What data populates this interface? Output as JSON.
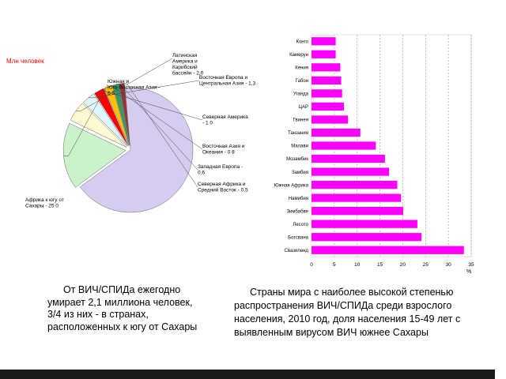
{
  "pie_units": "Млн человек",
  "captions": {
    "left": "От ВИЧ/СПИДа ежегодно умирает 2,1 миллиона человек, 3/4 из них - в странах, расположенных к югу от Сахары",
    "right": "Страны мира с наиболее высокой степенью распространения ВИЧ/СПИДа среди взрослого населения, 2010 год, доля населения 15-49 лет с выявленным вирусом ВИЧ южнее Сахары"
  },
  "colors": {
    "bars": "#ff00ff",
    "pie_slices": [
      "#d6ccf0",
      "#ccf2cc",
      "#fff8d0",
      "#dff6fb",
      "#ff0000",
      "#ffc000",
      "#339966",
      "#993333"
    ]
  },
  "chart_data": [
    {
      "type": "pie",
      "title": "",
      "units_label": "Млн человек",
      "slices": [
        {
          "label": "Африка к югу от Сахары - 25 0",
          "value": 25.0
        },
        {
          "label": "Южная и Юго-Восточная Азия - 6 5",
          "value": 6.5
        },
        {
          "label": "Латинская Америка и Карибский бассейн - 2,0",
          "value": 2.0
        },
        {
          "label": "Восточная Европа и Центральная Азия - 1,3",
          "value": 1.3
        },
        {
          "label": "Северная Америка - 1 0",
          "value": 1.0
        },
        {
          "label": "Восточная Азия и Океания - 0 8",
          "value": 0.8
        },
        {
          "label": "Западная Европа - 0,6",
          "value": 0.6
        },
        {
          "label": "Северная Африка и Средний Восток - 0,5",
          "value": 0.5
        }
      ]
    },
    {
      "type": "bar",
      "orientation": "horizontal",
      "categories": [
        "Конго",
        "Камерун",
        "Кения",
        "Габон",
        "Уганда",
        "ЦАР",
        "Гвинея",
        "Танзания",
        "Малави",
        "Мозамбик",
        "Замбия",
        "Южная Африка",
        "Намибия",
        "Зимбабве",
        "Лесото",
        "Ботсвана",
        "Свазиленд"
      ],
      "values": [
        5.3,
        5.3,
        6.3,
        6.5,
        6.7,
        7.1,
        8.0,
        10.7,
        14.1,
        16.1,
        17.0,
        18.8,
        19.6,
        20.1,
        23.2,
        24.1,
        33.4
      ],
      "xlim": [
        0,
        35
      ],
      "xticks": [
        "0",
        "5",
        "10",
        "15",
        "20",
        "25",
        "30",
        "35"
      ],
      "xlabel": "%",
      "grid": true
    }
  ]
}
